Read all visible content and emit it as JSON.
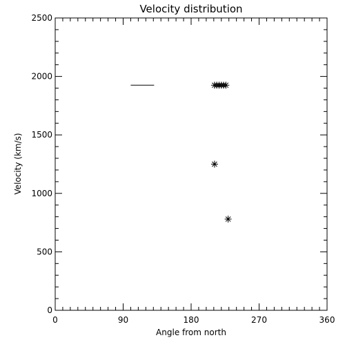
{
  "chart_data": {
    "type": "scatter",
    "title": "Velocity distribution",
    "xlabel": "Angle from north",
    "ylabel": "Velocity (km/s)",
    "xlim": [
      0,
      360
    ],
    "ylim": [
      0,
      2500
    ],
    "x_ticks": [
      0,
      90,
      180,
      270,
      360
    ],
    "x_tick_labels": [
      "0",
      "90",
      "180",
      "270",
      "360"
    ],
    "y_ticks": [
      0,
      500,
      1000,
      1500,
      2000,
      2500
    ],
    "y_tick_labels": [
      "0",
      "500",
      "1000",
      "1500",
      "2000",
      "2500"
    ],
    "x_minor_step": 10,
    "y_minor_step": 100,
    "grid": false,
    "legend": "none",
    "line_segments": [
      {
        "x": [
          100,
          131
        ],
        "y": [
          1925,
          1925
        ]
      }
    ],
    "points": [
      {
        "x": 211,
        "y": 1925
      },
      {
        "x": 214,
        "y": 1925
      },
      {
        "x": 217,
        "y": 1925
      },
      {
        "x": 220,
        "y": 1925
      },
      {
        "x": 223,
        "y": 1925
      },
      {
        "x": 226,
        "y": 1925
      },
      {
        "x": 211,
        "y": 1250
      },
      {
        "x": 229,
        "y": 780
      }
    ],
    "marker": "asterisk",
    "color": "#000000"
  }
}
